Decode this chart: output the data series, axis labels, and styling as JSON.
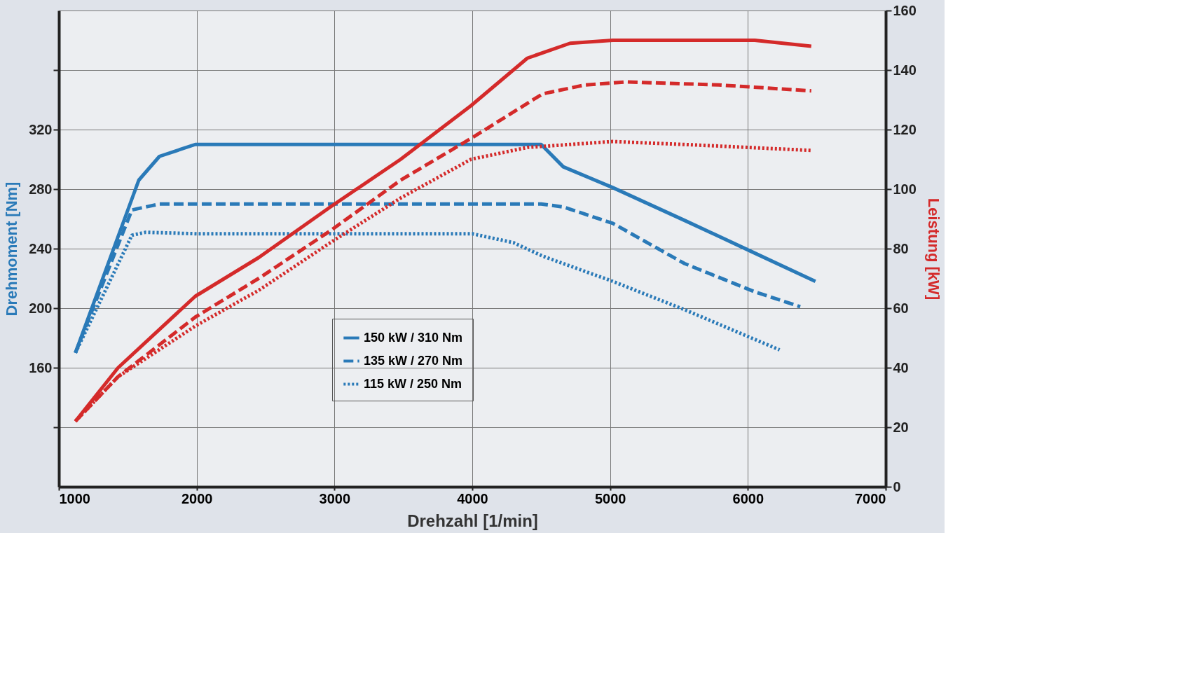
{
  "chart_data": {
    "type": "line",
    "xlabel": "Drehzahl [1/min]",
    "ylabel": "Drehmoment [Nm]",
    "y2label": "Leistung [kW]",
    "xlim": [
      1000,
      7000
    ],
    "xticks": [
      1000,
      2000,
      3000,
      4000,
      5000,
      6000,
      7000
    ],
    "ylim": [
      80,
      400
    ],
    "yticks": [
      {
        "value": 120,
        "label": null
      },
      160,
      200,
      240,
      280,
      320,
      {
        "value": 360,
        "label": null
      }
    ],
    "y2lim": [
      0,
      160
    ],
    "y2ticks": [
      0,
      20,
      40,
      60,
      80,
      100,
      120,
      140,
      160
    ],
    "grid": true,
    "legend": "bottom",
    "series": [
      {
        "name": "150 kW / 310 Nm",
        "color": "#2a7ab8",
        "line_style": "solid",
        "axis": "y",
        "x": [
          1120,
          1580,
          1730,
          1990,
          2500,
          3000,
          3500,
          4000,
          4500,
          4660,
          5020,
          5540,
          6050,
          6490
        ],
        "values": [
          170,
          286,
          302,
          310,
          310,
          310,
          310,
          310,
          310,
          295,
          281,
          259,
          237,
          218
        ]
      },
      {
        "name": "135 kW / 270 Nm",
        "color": "#2a7ab8",
        "line_style": "dashed",
        "axis": "y",
        "x": [
          1120,
          1530,
          1730,
          2000,
          2500,
          3000,
          3500,
          4000,
          4500,
          4660,
          5020,
          5540,
          6050,
          6380
        ],
        "values": [
          170,
          266,
          270,
          270,
          270,
          270,
          270,
          270,
          270,
          268,
          257,
          230,
          211,
          201
        ]
      },
      {
        "name": "115 kW / 250 Nm",
        "color": "#2a7ab8",
        "line_style": "dotted",
        "axis": "y",
        "x": [
          1120,
          1530,
          1630,
          2000,
          2500,
          3000,
          3500,
          4000,
          4300,
          4510,
          5020,
          5540,
          6230
        ],
        "values": [
          170,
          249,
          251,
          250,
          250,
          250,
          250,
          250,
          244,
          235,
          218,
          199,
          172
        ]
      },
      {
        "color": "#d42a2a",
        "line_style": "solid",
        "axis": "y2",
        "x": [
          1120,
          1430,
          1990,
          2450,
          2970,
          3480,
          3990,
          4400,
          4710,
          5020,
          5540,
          6050,
          6460
        ],
        "values": [
          22,
          40,
          64,
          77,
          94,
          110,
          128,
          144,
          149,
          150,
          150,
          150,
          148
        ]
      },
      {
        "color": "#d42a2a",
        "line_style": "dashed",
        "axis": "y2",
        "x": [
          1120,
          1430,
          1990,
          2450,
          2970,
          3480,
          3990,
          4510,
          4820,
          5120,
          5790,
          6460
        ],
        "values": [
          22,
          37,
          57,
          70,
          86,
          103,
          117,
          132,
          135,
          136,
          135,
          133
        ]
      },
      {
        "color": "#d42a2a",
        "line_style": "dotted",
        "axis": "y2",
        "x": [
          1120,
          1430,
          1990,
          2450,
          2970,
          3480,
          3990,
          4400,
          5020,
          5540,
          6460
        ],
        "values": [
          22,
          37,
          54,
          66,
          82,
          97,
          110,
          114,
          116,
          115,
          113
        ]
      }
    ]
  }
}
